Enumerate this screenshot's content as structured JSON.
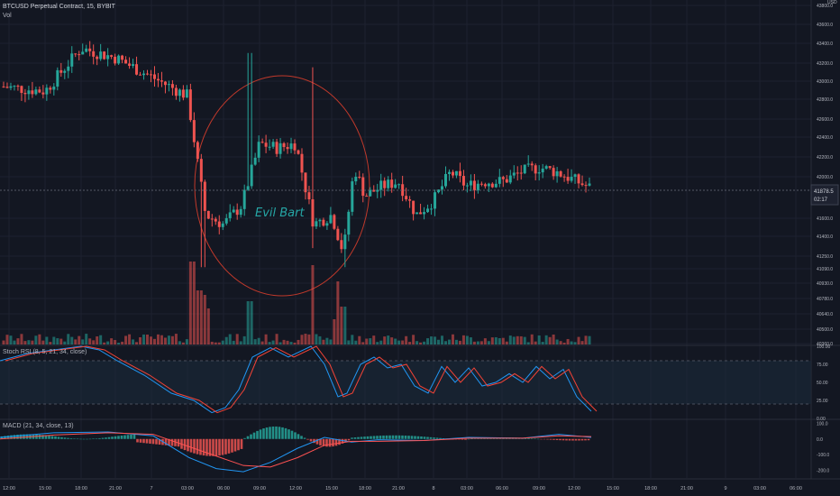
{
  "title": "BTCUSD Perpetual Contract, 15, BYBIT",
  "vol_label": "Vol",
  "annotation": "Evil Bart",
  "price_tag": {
    "value": "41878.5",
    "countdown": "02:17"
  },
  "colors": {
    "bg": "#131722",
    "up": "#26a69a",
    "down": "#ef5350",
    "grid": "#1e2230",
    "rsi_k": "#2196f3",
    "rsi_d": "#f44336",
    "macd_line": "#2196f3",
    "signal_line": "#ff5252",
    "axis_text": "#b2b5be",
    "circle": "#c0392b"
  },
  "axis": {
    "price_ticks": [
      "43800.0",
      "43600.0",
      "43400.0",
      "43200.0",
      "43000.0",
      "42800.0",
      "42600.0",
      "42400.0",
      "42200.0",
      "42000.0",
      "41600.0",
      "41400.0",
      "41250.0",
      "41090.0",
      "40930.0",
      "40780.0",
      "40640.0",
      "40500.0",
      "40360.0"
    ],
    "price_top_label": "USD",
    "time_ticks": [
      "12:00",
      "15:00",
      "18:00",
      "21:00",
      "7",
      "03:00",
      "06:00",
      "09:00",
      "12:00",
      "15:00",
      "18:00",
      "21:00",
      "8",
      "03:00",
      "06:00",
      "09:00",
      "12:00",
      "15:00",
      "18:00",
      "21:00",
      "9",
      "03:00",
      "06:00"
    ]
  },
  "chart_data": [
    {
      "type": "candlestick",
      "title": "BTCUSD Perpetual Contract, 15, BYBIT",
      "x_range": [
        "12:00",
        "06:00"
      ],
      "ylim": [
        40360,
        43800
      ],
      "last_price": 41878.5,
      "approx_close_path": [
        {
          "x": "12:00",
          "y": 42950
        },
        {
          "x": "15:00",
          "y": 42900
        },
        {
          "x": "18:00",
          "y": 43350
        },
        {
          "x": "21:00",
          "y": 43250
        },
        {
          "x": "7",
          "y": 43050
        },
        {
          "x": "03:00",
          "y": 42850
        },
        {
          "x": "04:30",
          "y": 41600
        },
        {
          "x": "06:00",
          "y": 41500
        },
        {
          "x": "07:30",
          "y": 41700
        },
        {
          "x": "09:00",
          "y": 42350
        },
        {
          "x": "10:30",
          "y": 42300
        },
        {
          "x": "12:00",
          "y": 42350
        },
        {
          "x": "13:30",
          "y": 41500
        },
        {
          "x": "15:00",
          "y": 41600
        },
        {
          "x": "16:00",
          "y": 41200
        },
        {
          "x": "17:00",
          "y": 42100
        },
        {
          "x": "18:00",
          "y": 41800
        },
        {
          "x": "19:30",
          "y": 41900
        },
        {
          "x": "21:00",
          "y": 41950
        },
        {
          "x": "22:30",
          "y": 41600
        },
        {
          "x": "8",
          "y": 41750
        },
        {
          "x": "01:30",
          "y": 42050
        },
        {
          "x": "03:00",
          "y": 41900
        },
        {
          "x": "04:30",
          "y": 41950
        },
        {
          "x": "06:00",
          "y": 41950
        },
        {
          "x": "07:30",
          "y": 42050
        },
        {
          "x": "09:00",
          "y": 42100
        },
        {
          "x": "10:30",
          "y": 42050
        },
        {
          "x": "11:30",
          "y": 41878.5
        }
      ]
    },
    {
      "type": "bar",
      "name": "Vol",
      "note": "volume histogram, spikes near 03:00 and 15:00 on day 7"
    },
    {
      "type": "line",
      "title": "Stoch RSI (8, 5, 21, 34, close)",
      "ylim": [
        0,
        100
      ],
      "y_ticks": [
        "100.00",
        "75.00",
        "50.00",
        "25.00",
        "0.00"
      ],
      "bands": [
        80,
        20
      ]
    },
    {
      "type": "bar",
      "title": "MACD (21, 34, close, 13)",
      "ylim": [
        -250,
        120
      ],
      "y_ticks": [
        "100.0",
        "0.0",
        "-100.0",
        "-200.0"
      ]
    }
  ]
}
